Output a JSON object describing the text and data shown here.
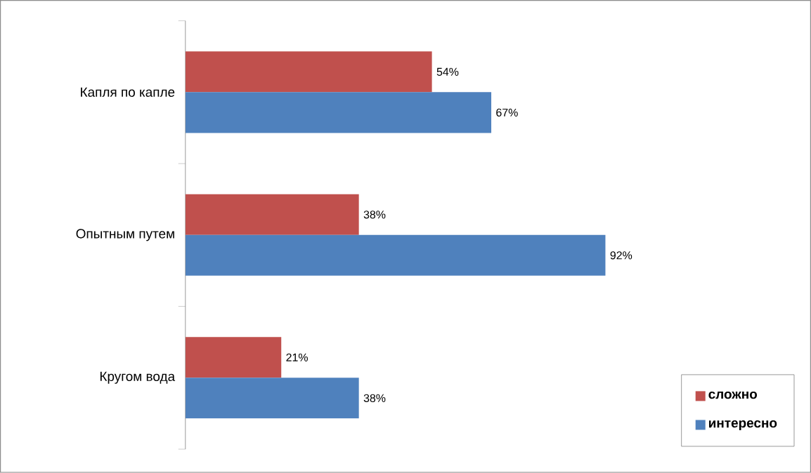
{
  "chart_data": {
    "type": "bar",
    "orientation": "horizontal",
    "categories": [
      "Капля по капле",
      "Опытным путем",
      "Кругом вода"
    ],
    "series": [
      {
        "name": "сложно",
        "color": "#c0504d",
        "values": [
          54,
          38,
          21
        ],
        "value_labels": [
          "54%",
          "38%",
          "21%"
        ]
      },
      {
        "name": "интересно",
        "color": "#4f81bd",
        "values": [
          67,
          92,
          38
        ],
        "value_labels": [
          "67%",
          "92%",
          "38%"
        ]
      }
    ],
    "legend": "bottom right"
  }
}
